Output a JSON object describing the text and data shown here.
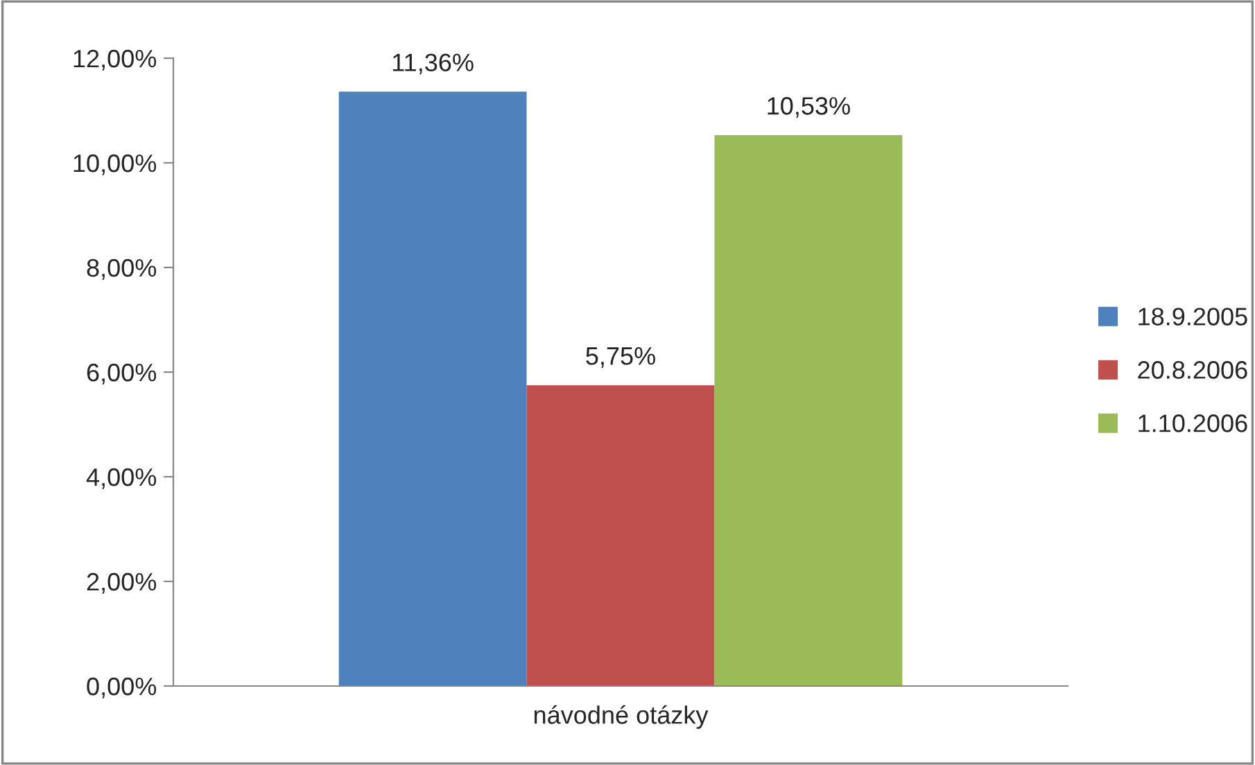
{
  "chart_data": {
    "type": "bar",
    "categories": [
      "návodné otázky"
    ],
    "series": [
      {
        "name": "18.9.2005",
        "color": "#4f81bd",
        "values": [
          11.36
        ],
        "value_labels": [
          "11,36%"
        ]
      },
      {
        "name": "20.8.2006",
        "color": "#c0504d",
        "values": [
          5.75
        ],
        "value_labels": [
          "5,75%"
        ]
      },
      {
        "name": "1.10.2006",
        "color": "#9bbb59",
        "values": [
          10.53
        ],
        "value_labels": [
          "10,53%"
        ]
      }
    ],
    "ylim": [
      0,
      12
    ],
    "yticks": [
      {
        "value": 0,
        "label": "0,00%"
      },
      {
        "value": 2,
        "label": "2,00%"
      },
      {
        "value": 4,
        "label": "4,00%"
      },
      {
        "value": 6,
        "label": "6,00%"
      },
      {
        "value": 8,
        "label": "8,00%"
      },
      {
        "value": 10,
        "label": "10,00%"
      },
      {
        "value": 12,
        "label": "12,00%"
      }
    ],
    "grid": false,
    "legend": "right"
  }
}
